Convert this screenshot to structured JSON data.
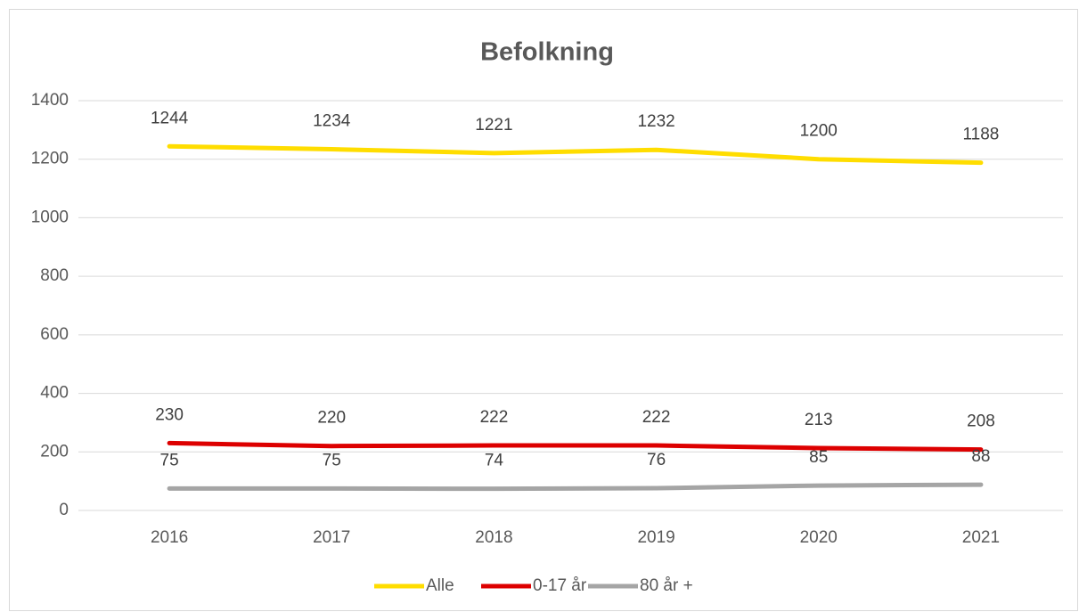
{
  "chart_data": {
    "type": "line",
    "title": "Befolkning",
    "categories": [
      "2016",
      "2017",
      "2018",
      "2019",
      "2020",
      "2021"
    ],
    "series": [
      {
        "name": "Alle",
        "color": "#ffdd00",
        "values": [
          1244,
          1234,
          1221,
          1232,
          1200,
          1188
        ]
      },
      {
        "name": "0-17 år",
        "color": "#dd0000",
        "values": [
          230,
          220,
          222,
          222,
          213,
          208
        ]
      },
      {
        "name": "80 år +",
        "color": "#a5a5a5",
        "values": [
          75,
          75,
          74,
          76,
          85,
          88
        ]
      }
    ],
    "ylim": [
      0,
      1400
    ],
    "yticks": [
      0,
      200,
      400,
      600,
      800,
      1000,
      1200,
      1400
    ],
    "grid": true,
    "legend": "bottom"
  }
}
